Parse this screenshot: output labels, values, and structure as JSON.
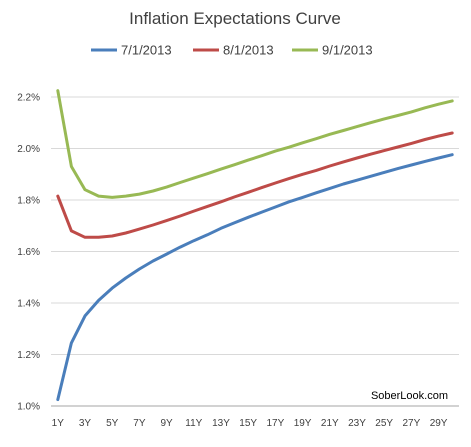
{
  "chart_data": {
    "type": "line",
    "title": "Inflation Expectations Curve",
    "xlabel": "",
    "ylabel": "",
    "x": [
      1,
      2,
      3,
      4,
      5,
      6,
      7,
      8,
      9,
      10,
      11,
      12,
      13,
      14,
      15,
      16,
      17,
      18,
      19,
      20,
      21,
      22,
      23,
      24,
      25,
      26,
      27,
      28,
      29,
      30
    ],
    "x_tick_labels": [
      "1Y",
      "3Y",
      "5Y",
      "7Y",
      "9Y",
      "11Y",
      "13Y",
      "15Y",
      "17Y",
      "19Y",
      "21Y",
      "23Y",
      "25Y",
      "27Y",
      "29Y"
    ],
    "x_tick_values": [
      1,
      3,
      5,
      7,
      9,
      11,
      13,
      15,
      17,
      19,
      21,
      23,
      25,
      27,
      29
    ],
    "ylim": [
      0.01,
      0.022
    ],
    "y_ticks": [
      {
        "value": 0.01,
        "label": "1.0%"
      },
      {
        "value": 0.012,
        "label": "1.2%"
      },
      {
        "value": 0.014,
        "label": "1.4%"
      },
      {
        "value": 0.016,
        "label": "1.6%"
      },
      {
        "value": 0.018,
        "label": "1.8%"
      },
      {
        "value": 0.02,
        "label": "2.0%"
      },
      {
        "value": 0.022,
        "label": "2.2%"
      }
    ],
    "grid": true,
    "legend_position": "top",
    "annotation": "SoberLook.com",
    "series": [
      {
        "name": "7/1/2013",
        "color": "#4a7ebb",
        "values": [
          0.01025,
          0.01245,
          0.0135,
          0.0141,
          0.01458,
          0.01497,
          0.01532,
          0.01563,
          0.0159,
          0.01617,
          0.01642,
          0.01665,
          0.0169,
          0.01712,
          0.01733,
          0.01753,
          0.01773,
          0.01793,
          0.0181,
          0.01828,
          0.01845,
          0.01862,
          0.01877,
          0.01892,
          0.01907,
          0.01922,
          0.01936,
          0.0195,
          0.01963,
          0.01976
        ]
      },
      {
        "name": "8/1/2013",
        "color": "#be4b48",
        "values": [
          0.01815,
          0.0168,
          0.01655,
          0.01655,
          0.0166,
          0.01672,
          0.01687,
          0.01703,
          0.0172,
          0.01738,
          0.01757,
          0.01775,
          0.01793,
          0.01812,
          0.0183,
          0.01848,
          0.01866,
          0.01883,
          0.019,
          0.01915,
          0.01932,
          0.01948,
          0.01963,
          0.01978,
          0.01992,
          0.02006,
          0.0202,
          0.02035,
          0.02048,
          0.0206
        ]
      },
      {
        "name": "9/1/2013",
        "color": "#98b954",
        "values": [
          0.02225,
          0.0193,
          0.0184,
          0.01815,
          0.0181,
          0.01815,
          0.01823,
          0.01835,
          0.0185,
          0.01868,
          0.01885,
          0.01902,
          0.0192,
          0.01937,
          0.01955,
          0.01972,
          0.0199,
          0.02005,
          0.02022,
          0.02038,
          0.02055,
          0.0207,
          0.02085,
          0.021,
          0.02115,
          0.02128,
          0.02142,
          0.02158,
          0.02172,
          0.02185
        ]
      }
    ]
  }
}
